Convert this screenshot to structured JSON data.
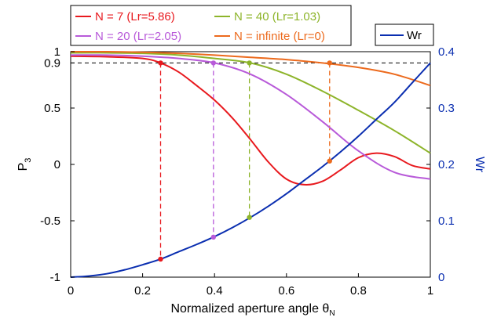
{
  "chart_data": {
    "type": "line",
    "xlabel": "Normalized aperture angle θ",
    "xlabel_sub": "N",
    "ylabel": "P",
    "ylabel_sub": "3",
    "ylabel_right": "Wr",
    "xlim": [
      0,
      1
    ],
    "ylim": [
      -1,
      1
    ],
    "ylim_right": [
      0,
      0.4
    ],
    "x_ticks": [
      "0",
      "0.2",
      "0.4",
      "0.6",
      "0.8",
      "1"
    ],
    "y_ticks": [
      "-1",
      "-0.5",
      "0",
      "0.5",
      "0.9",
      "1"
    ],
    "y_ticks_right": [
      "0",
      "0.1",
      "0.2",
      "0.3",
      "0.4"
    ],
    "grid": false,
    "threshold": 0.9,
    "colors": {
      "n7": "#e8191e",
      "n20": "#b85ad9",
      "n40": "#8db42a",
      "ninf": "#ec6a1d",
      "wr": "#0a2eb0"
    },
    "legend_left": [
      {
        "key": "n7",
        "label": "N = 7 (Lr=5.86)"
      },
      {
        "key": "n40",
        "label": "N = 40 (Lr=1.03)"
      },
      {
        "key": "n20",
        "label": "N = 20 (Lr=2.05)"
      },
      {
        "key": "ninf",
        "label": "N = infinite (Lr=0)"
      }
    ],
    "legend_right": {
      "key": "wr",
      "label": "Wr"
    },
    "series": [
      {
        "key": "n7",
        "name": "N = 7 (Lr=5.86)",
        "axis": "left",
        "x": [
          0,
          0.1,
          0.2,
          0.25,
          0.3,
          0.35,
          0.4,
          0.45,
          0.5,
          0.55,
          0.6,
          0.65,
          0.7,
          0.75,
          0.8,
          0.85,
          0.9,
          0.95,
          1.0
        ],
        "y": [
          0.96,
          0.955,
          0.94,
          0.9,
          0.82,
          0.7,
          0.57,
          0.41,
          0.22,
          0.02,
          -0.13,
          -0.18,
          -0.15,
          -0.05,
          0.06,
          0.1,
          0.07,
          -0.01,
          -0.04
        ]
      },
      {
        "key": "n20",
        "name": "N = 20 (Lr=2.05)",
        "axis": "left",
        "x": [
          0,
          0.1,
          0.2,
          0.3,
          0.4,
          0.5,
          0.6,
          0.7,
          0.8,
          0.9,
          1.0
        ],
        "y": [
          0.97,
          0.97,
          0.96,
          0.94,
          0.9,
          0.8,
          0.62,
          0.38,
          0.12,
          -0.07,
          -0.13
        ]
      },
      {
        "key": "n40",
        "name": "N = 40 (Lr=1.03)",
        "axis": "left",
        "x": [
          0,
          0.1,
          0.2,
          0.3,
          0.4,
          0.5,
          0.6,
          0.7,
          0.8,
          0.9,
          1.0
        ],
        "y": [
          0.99,
          0.99,
          0.985,
          0.97,
          0.94,
          0.9,
          0.8,
          0.65,
          0.48,
          0.3,
          0.1
        ]
      },
      {
        "key": "ninf",
        "name": "N = infinite (Lr=0)",
        "axis": "left",
        "x": [
          0,
          0.1,
          0.2,
          0.3,
          0.4,
          0.5,
          0.6,
          0.7,
          0.8,
          0.9,
          1.0
        ],
        "y": [
          1.0,
          1.0,
          0.995,
          0.985,
          0.97,
          0.95,
          0.93,
          0.9,
          0.86,
          0.8,
          0.7
        ]
      },
      {
        "key": "wr",
        "name": "Wr",
        "axis": "right",
        "x": [
          0,
          0.05,
          0.1,
          0.15,
          0.2,
          0.25,
          0.3,
          0.35,
          0.4,
          0.45,
          0.5,
          0.55,
          0.6,
          0.65,
          0.7,
          0.75,
          0.8,
          0.85,
          0.9,
          0.95,
          1.0
        ],
        "y": [
          0,
          0.002,
          0.006,
          0.013,
          0.022,
          0.032,
          0.045,
          0.058,
          0.072,
          0.088,
          0.106,
          0.126,
          0.148,
          0.172,
          0.196,
          0.222,
          0.25,
          0.28,
          0.31,
          0.345,
          0.38
        ]
      }
    ],
    "markers": [
      {
        "key": "n7",
        "x": 0.25,
        "y_left": 0.9,
        "y_right": 0.032
      },
      {
        "key": "n20",
        "x": 0.397,
        "y_left": 0.9,
        "y_right": 0.071
      },
      {
        "key": "n40",
        "x": 0.497,
        "y_left": 0.9,
        "y_right": 0.106
      },
      {
        "key": "ninf",
        "x": 0.72,
        "y_left": 0.9,
        "y_right": 0.206
      }
    ]
  }
}
